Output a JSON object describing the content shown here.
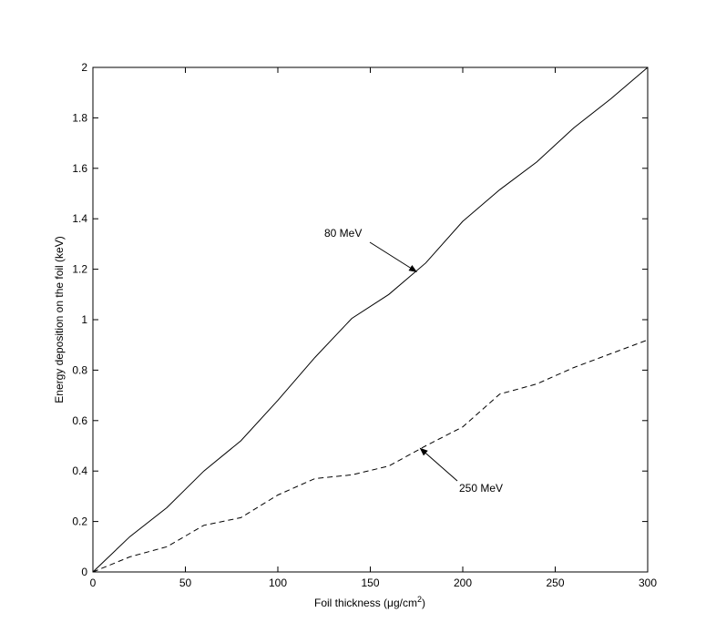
{
  "chart_data": {
    "type": "line",
    "xlabel": "Foil thickness (μg/cm",
    "xlabel_sup": "2",
    "xlabel_end": ")",
    "ylabel": "Energy deposition on the foil (keV)",
    "xlim": [
      0,
      300
    ],
    "ylim": [
      0,
      2
    ],
    "x_ticks": [
      0,
      50,
      100,
      150,
      200,
      250,
      300
    ],
    "y_ticks": [
      0,
      0.2,
      0.4,
      0.6,
      0.8,
      1,
      1.2,
      1.4,
      1.6,
      1.8,
      2
    ],
    "x_tick_labels": [
      "0",
      "50",
      "100",
      "150",
      "200",
      "250",
      "300"
    ],
    "y_tick_labels": [
      "0",
      "0.2",
      "0.4",
      "0.6",
      "0.8",
      "1",
      "1.2",
      "1.4",
      "1.6",
      "1.8",
      "2"
    ],
    "grid": false,
    "series": [
      {
        "label": "80 MeV",
        "style": "solid",
        "color": "#000000",
        "x": [
          0,
          20,
          40,
          60,
          80,
          100,
          120,
          140,
          160,
          180,
          200,
          220,
          240,
          260,
          280,
          300
        ],
        "y": [
          0,
          0.14,
          0.255,
          0.4,
          0.52,
          0.68,
          0.85,
          1.005,
          1.1,
          1.225,
          1.39,
          1.515,
          1.625,
          1.76,
          1.875,
          2.0
        ]
      },
      {
        "label": "250 MeV",
        "style": "dashed",
        "color": "#000000",
        "x": [
          0,
          20,
          40,
          60,
          80,
          100,
          120,
          140,
          160,
          180,
          200,
          220,
          240,
          260,
          280,
          300
        ],
        "y": [
          0,
          0.06,
          0.1,
          0.185,
          0.215,
          0.305,
          0.37,
          0.385,
          0.42,
          0.5,
          0.575,
          0.705,
          0.745,
          0.81,
          0.865,
          0.92
        ]
      }
    ],
    "annotations": [
      {
        "text": "80 MeV",
        "series": 0,
        "arrow_to": [
          175,
          1.19
        ]
      },
      {
        "text": "250 MeV",
        "series": 1,
        "arrow_to": [
          177,
          0.49
        ]
      }
    ]
  }
}
